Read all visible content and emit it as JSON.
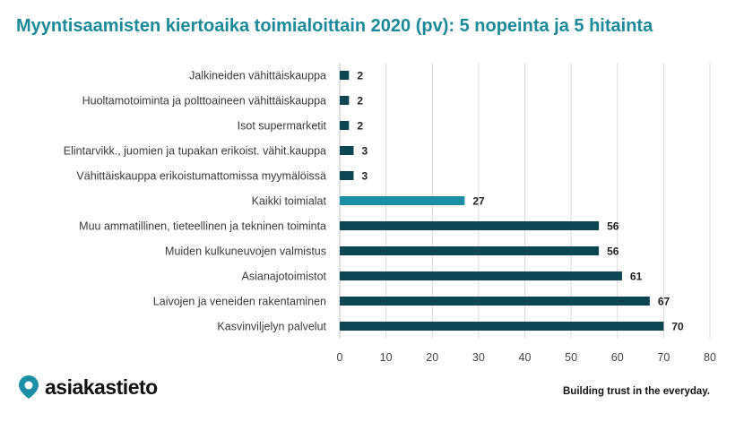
{
  "title": "Myyntisaamisten kiertoaika toimialoittain 2020 (pv): 5 nopeinta ja 5 hitainta",
  "brand": {
    "name": "asiakastieto",
    "tagline": "Building trust in the everyday."
  },
  "colors": {
    "title": "#1a8a9a",
    "bar": "#0d4653",
    "highlight": "#1b8fa6",
    "grid": "#d9d9d9"
  },
  "chart_data": {
    "type": "bar",
    "orientation": "horizontal",
    "categories": [
      "Jalkineiden vähittäiskauppa",
      "Huoltamotoiminta ja polttoaineen vähittäiskauppa",
      "Isot supermarketit",
      "Elintarvikk., juomien ja tupakan erikoist. vähit.kauppa",
      "Vähittäiskauppa erikoistumattomissa myymälöissä",
      "Kaikki toimialat",
      "Muu ammatillinen, tieteellinen ja tekninen toiminta",
      "Muiden kulkuneuvojen valmistus",
      "Asianajotoimistot",
      "Laivojen ja veneiden rakentaminen",
      "Kasvinviljelyn palvelut"
    ],
    "values": [
      2,
      2,
      2,
      3,
      3,
      27,
      56,
      56,
      61,
      67,
      70
    ],
    "highlight_index": 5,
    "xlim": [
      0,
      80
    ],
    "xticks": [
      0,
      10,
      20,
      30,
      40,
      50,
      60,
      70,
      80
    ],
    "grid": true,
    "data_labels": true
  }
}
